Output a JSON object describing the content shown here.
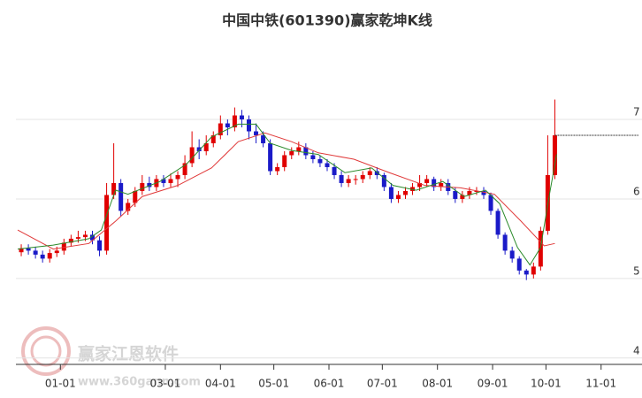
{
  "chart_data": {
    "type": "candlestick",
    "title": "中国中铁(601390)赢家乾坤K线",
    "watermark": {
      "brand": "赢家江恩软件",
      "url": "www.360gann.com"
    },
    "up_color": "#e00000",
    "down_color": "#1a1ac8",
    "grid": true,
    "xlim": [
      -25,
      327
    ],
    "ylim": [
      3.92,
      8.09
    ],
    "yticks": [
      4,
      5,
      6,
      7
    ],
    "xticks": [
      {
        "value": 0,
        "label": "01-01"
      },
      {
        "value": 59,
        "label": "03-01"
      },
      {
        "value": 90,
        "label": "04-01"
      },
      {
        "value": 120,
        "label": "05-01"
      },
      {
        "value": 151,
        "label": "06-01"
      },
      {
        "value": 181,
        "label": "07-01"
      },
      {
        "value": 212,
        "label": "08-01"
      },
      {
        "value": 243,
        "label": "09-01"
      },
      {
        "value": 273,
        "label": "10-01"
      },
      {
        "value": 304,
        "label": "11-01"
      }
    ],
    "x": [
      -22,
      -18,
      -14,
      -10,
      -6,
      -2,
      2,
      6,
      10,
      14,
      18,
      22,
      26,
      30,
      34,
      38,
      42,
      46,
      50,
      54,
      58,
      62,
      66,
      70,
      74,
      78,
      82,
      86,
      90,
      94,
      98,
      102,
      106,
      110,
      114,
      118,
      122,
      126,
      130,
      134,
      138,
      142,
      146,
      150,
      154,
      158,
      162,
      166,
      170,
      174,
      178,
      182,
      186,
      190,
      194,
      198,
      202,
      206,
      210,
      214,
      218,
      222,
      226,
      230,
      234,
      238,
      242,
      246,
      250,
      254,
      258,
      262,
      266,
      270,
      274,
      278
    ],
    "open": [
      5.33,
      5.38,
      5.35,
      5.3,
      5.25,
      5.32,
      5.35,
      5.45,
      5.5,
      5.52,
      5.55,
      5.48,
      5.35,
      6.05,
      6.2,
      5.85,
      5.95,
      6.1,
      6.2,
      6.15,
      6.25,
      6.2,
      6.25,
      6.3,
      6.45,
      6.65,
      6.6,
      6.7,
      6.8,
      6.95,
      6.9,
      7.05,
      7.0,
      6.85,
      6.8,
      6.7,
      6.35,
      6.4,
      6.55,
      6.6,
      6.65,
      6.55,
      6.5,
      6.45,
      6.4,
      6.3,
      6.2,
      6.25,
      6.25,
      6.3,
      6.35,
      6.3,
      6.15,
      6.0,
      6.05,
      6.1,
      6.15,
      6.2,
      6.25,
      6.15,
      6.2,
      6.1,
      6.0,
      6.05,
      6.1,
      6.1,
      6.05,
      5.85,
      5.55,
      5.35,
      5.25,
      5.1,
      5.05,
      5.15,
      5.6,
      6.3
    ],
    "high": [
      5.43,
      5.43,
      5.4,
      5.35,
      5.37,
      5.4,
      5.5,
      5.55,
      5.6,
      5.6,
      5.6,
      5.53,
      6.2,
      6.7,
      6.25,
      6.0,
      6.15,
      6.3,
      6.28,
      6.3,
      6.3,
      6.32,
      6.35,
      6.55,
      6.85,
      6.75,
      6.8,
      6.85,
      7.05,
      7.0,
      7.15,
      7.12,
      7.05,
      6.95,
      6.85,
      6.75,
      6.45,
      6.6,
      6.65,
      6.72,
      6.7,
      6.6,
      6.55,
      6.5,
      6.45,
      6.35,
      6.3,
      6.3,
      6.35,
      6.4,
      6.4,
      6.33,
      6.2,
      6.1,
      6.15,
      6.2,
      6.3,
      6.3,
      6.28,
      6.25,
      6.25,
      6.15,
      6.1,
      6.15,
      6.15,
      6.15,
      6.08,
      5.88,
      5.58,
      5.4,
      5.28,
      5.12,
      5.2,
      5.65,
      6.8,
      7.25
    ],
    "low": [
      5.28,
      5.3,
      5.25,
      5.2,
      5.2,
      5.27,
      5.3,
      5.4,
      5.45,
      5.47,
      5.43,
      5.28,
      5.3,
      6.0,
      5.78,
      5.8,
      5.9,
      6.05,
      6.1,
      6.1,
      6.15,
      6.15,
      6.15,
      6.25,
      6.4,
      6.5,
      6.55,
      6.65,
      6.75,
      6.8,
      6.85,
      6.9,
      6.75,
      6.7,
      6.65,
      6.3,
      6.3,
      6.35,
      6.5,
      6.55,
      6.5,
      6.45,
      6.4,
      6.35,
      6.25,
      6.15,
      6.15,
      6.18,
      6.2,
      6.25,
      6.25,
      6.1,
      5.95,
      5.95,
      6.0,
      6.05,
      6.1,
      6.15,
      6.1,
      6.1,
      6.05,
      5.95,
      5.95,
      6.0,
      6.05,
      6.0,
      5.8,
      5.5,
      5.3,
      5.2,
      5.05,
      4.98,
      5.0,
      5.1,
      5.55,
      6.25
    ],
    "close": [
      5.38,
      5.35,
      5.3,
      5.25,
      5.32,
      5.35,
      5.45,
      5.5,
      5.52,
      5.55,
      5.48,
      5.35,
      6.05,
      6.2,
      5.85,
      5.95,
      6.1,
      6.2,
      6.15,
      6.25,
      6.2,
      6.25,
      6.3,
      6.45,
      6.65,
      6.6,
      6.7,
      6.8,
      6.95,
      6.9,
      7.05,
      7.0,
      6.85,
      6.8,
      6.7,
      6.35,
      6.4,
      6.55,
      6.6,
      6.65,
      6.55,
      6.5,
      6.45,
      6.4,
      6.3,
      6.2,
      6.25,
      6.25,
      6.3,
      6.35,
      6.3,
      6.15,
      6.0,
      6.05,
      6.1,
      6.15,
      6.2,
      6.25,
      6.15,
      6.2,
      6.1,
      6.0,
      6.05,
      6.1,
      6.1,
      6.05,
      5.85,
      5.55,
      5.35,
      5.25,
      5.1,
      5.05,
      5.15,
      5.6,
      6.3,
      6.8
    ],
    "lines": [
      {
        "color": "#e03a3a",
        "x": [
          -24,
          -4,
          16,
          31,
          46,
          66,
          85,
          100,
          115,
          130,
          145,
          165,
          185,
          205,
          225,
          244,
          259,
          272,
          278
        ],
        "values": [
          5.61,
          5.37,
          5.44,
          5.72,
          6.03,
          6.17,
          6.39,
          6.72,
          6.83,
          6.72,
          6.58,
          6.5,
          6.33,
          6.17,
          6.14,
          6.06,
          5.72,
          5.41,
          5.44
        ]
      },
      {
        "color": "#2a8a2a",
        "x": [
          -24,
          -4,
          16,
          23,
          31,
          38,
          56,
          71,
          85,
          100,
          110,
          118,
          130,
          145,
          160,
          175,
          187,
          200,
          215,
          227,
          239,
          247,
          257,
          264,
          270,
          275,
          279
        ],
        "values": [
          5.37,
          5.42,
          5.5,
          5.61,
          6.11,
          6.06,
          6.22,
          6.44,
          6.78,
          6.94,
          6.94,
          6.7,
          6.61,
          6.56,
          6.33,
          6.39,
          6.17,
          6.11,
          6.22,
          6.03,
          6.11,
          5.94,
          5.39,
          5.17,
          5.39,
          6.06,
          6.56
        ]
      }
    ]
  }
}
